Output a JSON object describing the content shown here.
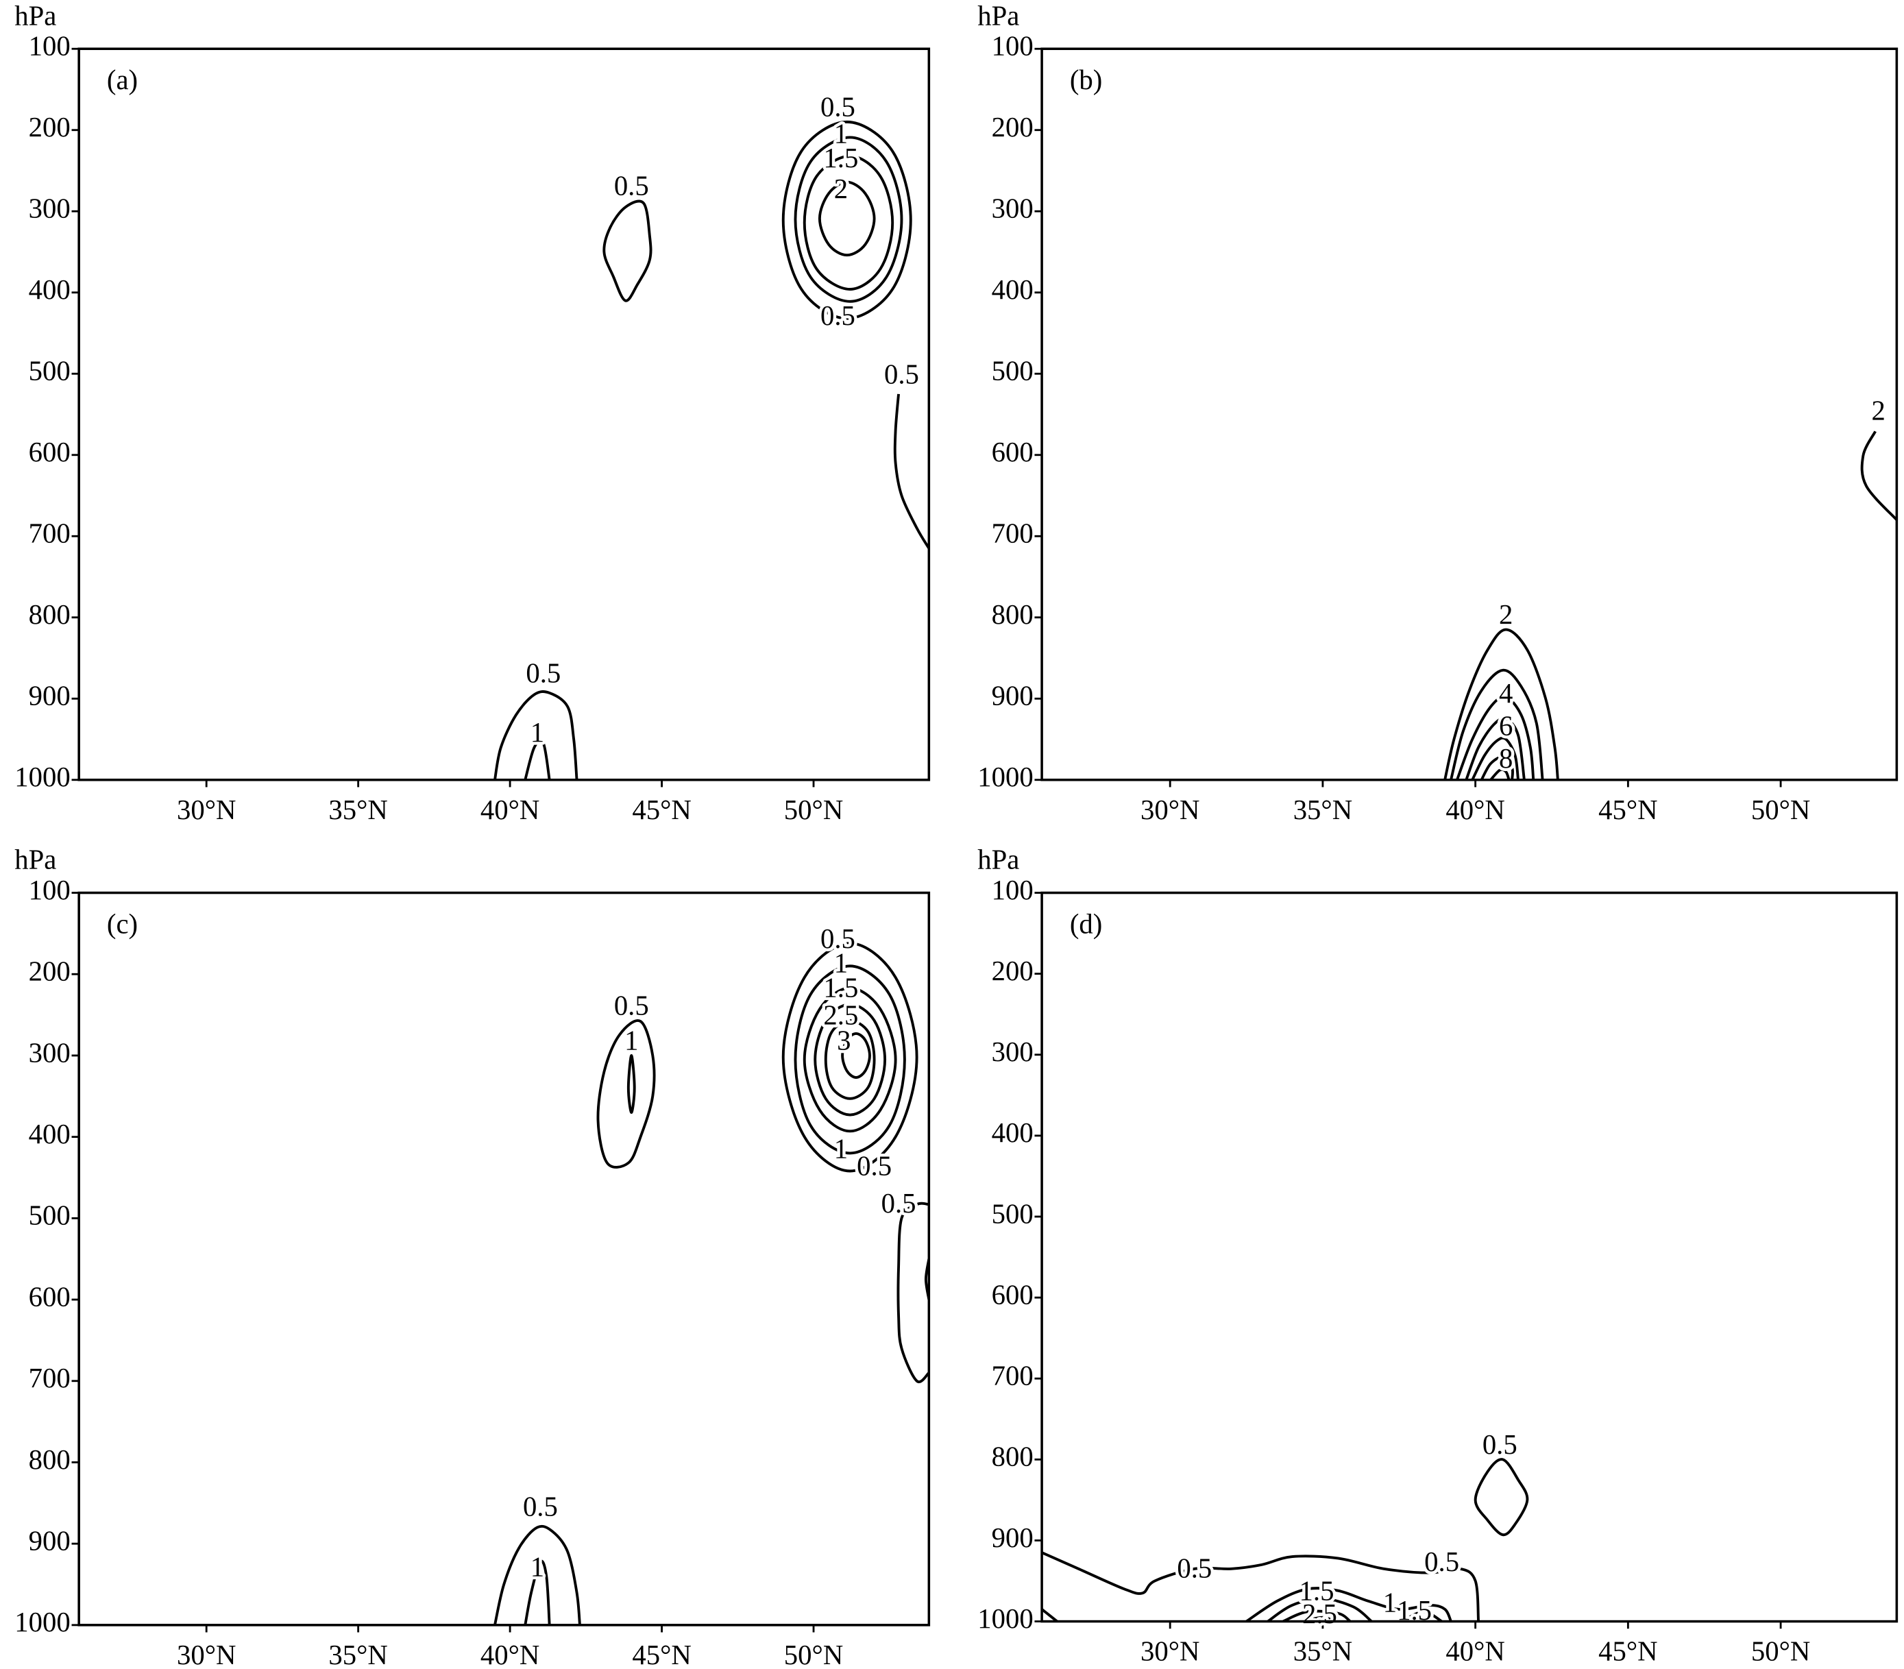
{
  "chart_data": [
    {
      "type": "contour",
      "label": "(a)",
      "ylabel": "hPa",
      "xlim": [
        25.8,
        53.8
      ],
      "ylim": [
        1000,
        100
      ],
      "xticks": [
        {
          "value": 30,
          "label": "30°N"
        },
        {
          "value": 35,
          "label": "35°N"
        },
        {
          "value": 40,
          "label": "40°N"
        },
        {
          "value": 45,
          "label": "45°N"
        },
        {
          "value": 50,
          "label": "50°N"
        }
      ],
      "yticks": [
        100,
        200,
        300,
        400,
        500,
        600,
        700,
        800,
        900,
        1000
      ],
      "contours": [
        {
          "level": 0.5,
          "closed": true,
          "x": [
            44.4,
            44.6,
            44.6,
            44.2,
            43.8,
            43.4,
            43.1,
            43.3,
            43.8
          ],
          "y": [
            290,
            330,
            360,
            390,
            410,
            380,
            350,
            320,
            295
          ]
        },
        {
          "level": 0.5,
          "closed": true,
          "x": [
            51.1,
            52.6,
            53.2,
            52.6,
            51.1,
            49.6,
            49.0,
            49.6
          ],
          "y": [
            190,
            226,
            311,
            396,
            432,
            396,
            311,
            226
          ]
        },
        {
          "level": 1,
          "closed": true,
          "x": [
            51.2,
            52.4,
            52.9,
            52.4,
            51.2,
            49.9,
            49.4,
            49.9
          ],
          "y": [
            209,
            239,
            310,
            381,
            411,
            381,
            310,
            239
          ]
        },
        {
          "level": 1.5,
          "closed": true,
          "x": [
            51.2,
            52.2,
            52.6,
            52.2,
            51.2,
            50.1,
            49.7,
            50.1
          ],
          "y": [
            232,
            257,
            314,
            371,
            396,
            371,
            314,
            257
          ]
        },
        {
          "level": 2,
          "closed": true,
          "x": [
            51.1,
            51.7,
            52.0,
            51.7,
            51.1,
            50.5,
            50.2,
            50.5
          ],
          "y": [
            264,
            278,
            309,
            341,
            354,
            341,
            309,
            278
          ]
        },
        {
          "level": 0.5,
          "closed": false,
          "x": [
            52.8,
            52.7,
            52.7,
            52.9,
            53.4,
            53.8
          ],
          "y": [
            525,
            570,
            610,
            650,
            690,
            715
          ]
        },
        {
          "level": 0.5,
          "closed": false,
          "x": [
            39.5,
            39.7,
            40.2,
            40.8,
            41.3,
            41.9,
            42.1,
            42.2
          ],
          "y": [
            1000,
            960,
            920,
            895,
            893,
            910,
            950,
            1000
          ]
        },
        {
          "level": 1,
          "closed": false,
          "x": [
            40.5,
            40.8,
            41.1,
            41.3
          ],
          "y": [
            1000,
            960,
            955,
            1000
          ]
        }
      ],
      "labels": [
        {
          "value": 0.5,
          "x": 44.0,
          "y": 272
        },
        {
          "value": 0.5,
          "x": 50.8,
          "y": 175
        },
        {
          "value": 1,
          "x": 50.9,
          "y": 208
        },
        {
          "value": 1.5,
          "x": 50.9,
          "y": 238
        },
        {
          "value": 2,
          "x": 50.9,
          "y": 276
        },
        {
          "value": 0.5,
          "x": 50.8,
          "y": 432
        },
        {
          "value": 0.5,
          "x": 52.9,
          "y": 504
        },
        {
          "value": 0.5,
          "x": 41.1,
          "y": 872
        },
        {
          "value": 1,
          "x": 40.9,
          "y": 945
        }
      ]
    },
    {
      "type": "contour",
      "label": "(b)",
      "ylabel": "hPa",
      "xlim": [
        25.8,
        53.8
      ],
      "ylim": [
        1000,
        100
      ],
      "xticks": [
        {
          "value": 30,
          "label": "30°N"
        },
        {
          "value": 35,
          "label": "35°N"
        },
        {
          "value": 40,
          "label": "40°N"
        },
        {
          "value": 45,
          "label": "45°N"
        },
        {
          "value": 50,
          "label": "50°N"
        }
      ],
      "yticks": [
        100,
        200,
        300,
        400,
        500,
        600,
        700,
        800,
        900,
        1000
      ],
      "contours": [
        {
          "level": 2,
          "closed": false,
          "x": [
            53.1,
            52.7,
            52.8,
            53.8
          ],
          "y": [
            571,
            601,
            638,
            680
          ]
        },
        {
          "level": 2,
          "closed": false,
          "x": [
            39.0,
            39.3,
            39.8,
            40.4,
            41.0,
            41.7,
            42.3,
            42.6,
            42.7
          ],
          "y": [
            1000,
            950,
            890,
            840,
            815,
            840,
            900,
            960,
            1000
          ]
        },
        {
          "level": 3,
          "closed": false,
          "x": [
            39.2,
            39.6,
            40.2,
            40.9,
            41.5,
            42.0,
            42.2
          ],
          "y": [
            1000,
            940,
            890,
            865,
            885,
            930,
            1000
          ]
        },
        {
          "level": 4,
          "closed": false,
          "x": [
            39.4,
            39.9,
            40.5,
            41.0,
            41.5,
            41.8,
            41.9
          ],
          "y": [
            1000,
            950,
            910,
            898,
            920,
            960,
            1000
          ]
        },
        {
          "level": 5,
          "closed": false,
          "x": [
            39.7,
            40.1,
            40.6,
            41.0,
            41.4,
            41.6
          ],
          "y": [
            1000,
            960,
            932,
            925,
            945,
            1000
          ]
        },
        {
          "level": 6,
          "closed": false,
          "x": [
            39.9,
            40.3,
            40.7,
            41.0,
            41.3,
            41.4
          ],
          "y": [
            1000,
            970,
            952,
            950,
            970,
            1000
          ]
        },
        {
          "level": 7,
          "closed": false,
          "x": [
            40.2,
            40.5,
            40.9,
            41.2,
            41.2
          ],
          "y": [
            1000,
            980,
            972,
            985,
            1000
          ]
        },
        {
          "level": 8,
          "closed": false,
          "x": [
            40.5,
            40.8,
            41.0,
            41.1
          ],
          "y": [
            1000,
            988,
            990,
            1000
          ]
        }
      ],
      "labels": [
        {
          "value": 2,
          "x": 53.2,
          "y": 549
        },
        {
          "value": 2,
          "x": 41.0,
          "y": 800
        },
        {
          "value": 4,
          "x": 41.0,
          "y": 897
        },
        {
          "value": 6,
          "x": 41.0,
          "y": 937
        },
        {
          "value": 8,
          "x": 41.0,
          "y": 977
        }
      ]
    },
    {
      "type": "contour",
      "label": "(c)",
      "ylabel": "hPa",
      "xlim": [
        25.8,
        53.8
      ],
      "ylim": [
        1000,
        100
      ],
      "xticks": [
        {
          "value": 30,
          "label": "30°N"
        },
        {
          "value": 35,
          "label": "35°N"
        },
        {
          "value": 40,
          "label": "40°N"
        },
        {
          "value": 45,
          "label": "45°N"
        },
        {
          "value": 50,
          "label": "50°N"
        }
      ],
      "yticks": [
        100,
        200,
        300,
        400,
        500,
        600,
        700,
        800,
        900,
        1000
      ],
      "contours": [
        {
          "level": 0.5,
          "closed": true,
          "x": [
            44.3,
            44.7,
            44.7,
            44.3,
            43.9,
            43.2,
            42.9,
            43.1,
            43.6
          ],
          "y": [
            258,
            300,
            350,
            400,
            432,
            432,
            380,
            320,
            275
          ]
        },
        {
          "level": 1,
          "closed": true,
          "x": [
            44.0,
            44.1,
            44.0,
            43.9
          ],
          "y": [
            300,
            340,
            370,
            340
          ]
        },
        {
          "level": 0.5,
          "closed": true,
          "x": [
            51.2,
            52.7,
            53.4,
            52.7,
            51.2,
            49.7,
            49.0,
            49.7
          ],
          "y": [
            162,
            204,
            302,
            400,
            442,
            400,
            302,
            204
          ]
        },
        {
          "level": 1,
          "closed": true,
          "x": [
            51.2,
            52.5,
            53.0,
            52.5,
            51.2,
            49.9,
            49.4,
            49.9
          ],
          "y": [
            190,
            225,
            305,
            386,
            420,
            386,
            305,
            225
          ]
        },
        {
          "level": 1.5,
          "closed": true,
          "x": [
            51.2,
            52.2,
            52.7,
            52.2,
            51.2,
            50.2,
            49.7,
            50.2
          ],
          "y": [
            217,
            243,
            305,
            367,
            393,
            367,
            305,
            243
          ]
        },
        {
          "level": 2,
          "closed": true,
          "x": [
            51.2,
            52.0,
            52.35,
            52.0,
            51.2,
            50.4,
            50.05,
            50.4
          ],
          "y": [
            237,
            257,
            305,
            353,
            373,
            353,
            305,
            257
          ]
        },
        {
          "level": 2.5,
          "closed": true,
          "x": [
            51.2,
            51.8,
            52.0,
            51.8,
            51.2,
            50.6,
            50.4,
            50.6
          ],
          "y": [
            257,
            271,
            305,
            339,
            353,
            339,
            305,
            271
          ]
        },
        {
          "level": 3,
          "closed": true,
          "x": [
            51.4,
            51.7,
            51.85,
            51.7,
            51.4,
            51.1,
            50.95,
            51.1
          ],
          "y": [
            273,
            281,
            300,
            319,
            327,
            319,
            300,
            281
          ]
        },
        {
          "level": 0.5,
          "closed": false,
          "x": [
            53.8,
            53.4,
            52.9,
            52.8,
            52.8,
            52.9,
            53.4,
            53.8
          ],
          "y": [
            483,
            483,
            500,
            560,
            620,
            660,
            700,
            690
          ]
        },
        {
          "level": 0.5,
          "closed": false,
          "x": [
            53.8,
            53.7,
            53.8
          ],
          "y": [
            550,
            575,
            600
          ]
        },
        {
          "level": 0.5,
          "closed": false,
          "x": [
            39.5,
            39.8,
            40.3,
            40.9,
            41.4,
            41.9,
            42.2,
            42.3
          ],
          "y": [
            1000,
            950,
            905,
            880,
            885,
            910,
            960,
            1000
          ]
        },
        {
          "level": 1,
          "closed": false,
          "x": [
            40.5,
            40.7,
            41.0,
            41.2,
            41.3
          ],
          "y": [
            1000,
            960,
            922,
            940,
            1000
          ]
        }
      ],
      "labels": [
        {
          "value": 0.5,
          "x": 44.0,
          "y": 242
        },
        {
          "value": 1,
          "x": 44.0,
          "y": 285
        },
        {
          "value": 0.5,
          "x": 50.8,
          "y": 160
        },
        {
          "value": 1,
          "x": 50.9,
          "y": 190
        },
        {
          "value": 1.5,
          "x": 50.9,
          "y": 220
        },
        {
          "value": 2.5,
          "x": 50.9,
          "y": 254
        },
        {
          "value": 3,
          "x": 51.0,
          "y": 285
        },
        {
          "value": 1,
          "x": 50.9,
          "y": 418
        },
        {
          "value": 0.5,
          "x": 52.0,
          "y": 439
        },
        {
          "value": 0.5,
          "x": 52.8,
          "y": 485
        },
        {
          "value": 0.5,
          "x": 41.0,
          "y": 858
        },
        {
          "value": 1,
          "x": 40.9,
          "y": 932
        }
      ]
    },
    {
      "type": "contour",
      "label": "(d)",
      "ylabel": "hPa",
      "xlim": [
        25.8,
        53.8
      ],
      "ylim": [
        1000,
        100
      ],
      "xticks": [
        {
          "value": 30,
          "label": "30°N"
        },
        {
          "value": 35,
          "label": "35°N"
        },
        {
          "value": 40,
          "label": "40°N"
        },
        {
          "value": 45,
          "label": "45°N"
        },
        {
          "value": 50,
          "label": "50°N"
        }
      ],
      "yticks": [
        100,
        200,
        300,
        400,
        500,
        600,
        700,
        800,
        900,
        1000
      ],
      "contours": [
        {
          "level": 0.5,
          "closed": true,
          "x": [
            40.9,
            41.4,
            41.7,
            41.3,
            40.9,
            40.4,
            40.0,
            40.4
          ],
          "y": [
            800,
            825,
            850,
            880,
            893,
            875,
            850,
            815
          ]
        },
        {
          "level": 0.5,
          "closed": false,
          "x": [
            25.8,
            27.0,
            28.5,
            29.1,
            29.5,
            30.8,
            32.0,
            33.0,
            34.0,
            35.5,
            37.0,
            38.5,
            39.5,
            40.0,
            40.1
          ],
          "y": [
            915,
            935,
            960,
            965,
            950,
            935,
            935,
            930,
            920,
            922,
            935,
            940,
            935,
            950,
            1000
          ]
        },
        {
          "level": 0.5,
          "closed": false,
          "x": [
            25.8,
            26.3
          ],
          "y": [
            985,
            1000
          ]
        },
        {
          "level": 1,
          "closed": false,
          "x": [
            32.5,
            33.5,
            34.5,
            35.5,
            36.5,
            37.5,
            38.5,
            39.0,
            39.2
          ],
          "y": [
            1000,
            975,
            960,
            962,
            975,
            985,
            980,
            985,
            1000
          ]
        },
        {
          "level": 1.5,
          "closed": false,
          "x": [
            33.2,
            34.0,
            35.0,
            36.0,
            36.6
          ],
          "y": [
            1000,
            980,
            972,
            982,
            1000
          ]
        },
        {
          "level": 1.5,
          "closed": false,
          "x": [
            37.6,
            38.3,
            38.9
          ],
          "y": [
            1000,
            988,
            1000
          ]
        },
        {
          "level": 2,
          "closed": false,
          "x": [
            33.7,
            34.5,
            35.5,
            35.9
          ],
          "y": [
            1000,
            988,
            990,
            1000
          ]
        },
        {
          "level": 2.5,
          "closed": false,
          "x": [
            34.3,
            35.0,
            35.4
          ],
          "y": [
            1000,
            995,
            1000
          ]
        }
      ],
      "labels": [
        {
          "value": 0.5,
          "x": 40.8,
          "y": 785
        },
        {
          "value": 0.5,
          "x": 30.8,
          "y": 938
        },
        {
          "value": 0.5,
          "x": 38.9,
          "y": 930
        },
        {
          "value": 1.5,
          "x": 34.8,
          "y": 966
        },
        {
          "value": 2.5,
          "x": 34.9,
          "y": 994
        },
        {
          "value": 1,
          "x": 37.2,
          "y": 980
        },
        {
          "value": 1.5,
          "x": 38.0,
          "y": 990
        }
      ]
    }
  ]
}
